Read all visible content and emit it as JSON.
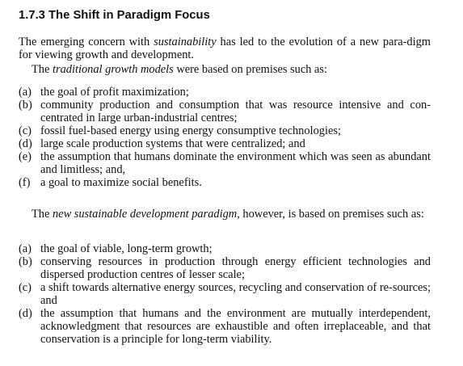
{
  "section": {
    "title": "1.7.3 The Shift in Paradigm Focus"
  },
  "intro": {
    "p1_before": "The emerging concern with ",
    "p1_italic": "sustainability",
    "p1_after": " has led to the evolution of a new para-digm for viewing growth and development.",
    "p2_before": "The ",
    "p2_italic": "traditional growth models",
    "p2_after": " were based on premises such as:"
  },
  "traditional_premises": [
    {
      "marker": "(a)",
      "text": "the goal of profit maximization;"
    },
    {
      "marker": "(b)",
      "text": "community production and consumption that was resource intensive and con-centrated in large urban-industrial centres;"
    },
    {
      "marker": "(c)",
      "text": "fossil fuel-based energy using energy consumptive technologies;"
    },
    {
      "marker": "(d)",
      "text": "large scale production systems that were centralized; and"
    },
    {
      "marker": "(e)",
      "text": "the assumption that humans dominate the environment which was seen as abundant and limitless; and,"
    },
    {
      "marker": "(f)",
      "text": "a goal to maximize social benefits."
    }
  ],
  "new_paradigm": {
    "p_before": "The ",
    "p_italic": "new sustainable development paradigm",
    "p_after": ", however, is based on premises such as:"
  },
  "new_premises": [
    {
      "marker": "(a)",
      "text": "the goal of viable, long-term growth;"
    },
    {
      "marker": "(b)",
      "text": "conserving resources in production through energy efficient technologies and dispersed production centres of lesser scale;"
    },
    {
      "marker": "(c)",
      "text": "a shift towards alternative energy sources, recycling and conservation of re-sources; and"
    },
    {
      "marker": "(d)",
      "text": "the assumption that humans and the environment are mutually interdependent, acknowledgment that resources are exhaustible and often irreplaceable, and that conservation is a principle for long-term viability."
    }
  ]
}
